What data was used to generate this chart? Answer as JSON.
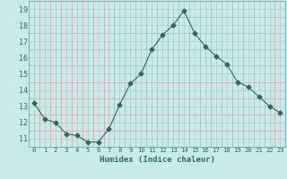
{
  "x": [
    0,
    1,
    2,
    3,
    4,
    5,
    6,
    7,
    8,
    9,
    10,
    11,
    12,
    13,
    14,
    15,
    16,
    17,
    18,
    19,
    20,
    21,
    22,
    23
  ],
  "y": [
    13.2,
    12.2,
    12.0,
    11.3,
    11.2,
    10.8,
    10.8,
    11.6,
    13.1,
    14.4,
    15.0,
    16.5,
    17.4,
    18.0,
    18.9,
    17.5,
    16.7,
    16.1,
    15.6,
    14.5,
    14.2,
    13.6,
    13.0,
    12.6
  ],
  "xlabel": "Humidex (Indice chaleur)",
  "xlim": [
    -0.5,
    23.5
  ],
  "ylim": [
    10.5,
    19.5
  ],
  "yticks": [
    11,
    12,
    13,
    14,
    15,
    16,
    17,
    18,
    19
  ],
  "xticks": [
    0,
    1,
    2,
    3,
    4,
    5,
    6,
    7,
    8,
    9,
    10,
    11,
    12,
    13,
    14,
    15,
    16,
    17,
    18,
    19,
    20,
    21,
    22,
    23
  ],
  "xtick_labels": [
    "0",
    "1",
    "2",
    "3",
    "4",
    "5",
    "6",
    "7",
    "8",
    "9",
    "10",
    "11",
    "12",
    "13",
    "14",
    "15",
    "16",
    "17",
    "18",
    "19",
    "20",
    "21",
    "22",
    "23"
  ],
  "line_color": "#2d6b5e",
  "marker": "D",
  "marker_size": 2.5,
  "bg_color": "#c8eaea",
  "grid_major_color": "#aacccc",
  "grid_minor_color": "#dda0a0"
}
